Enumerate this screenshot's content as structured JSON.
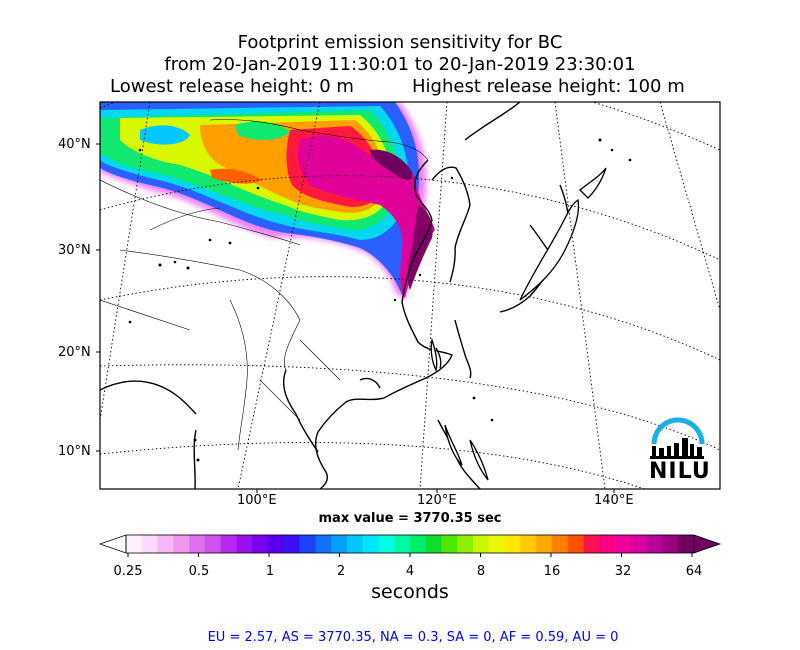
{
  "title": {
    "line1": "Footprint emission sensitivity for BC",
    "line2": "from 20-Jan-2019 11:30:01 to 20-Jan-2019 23:30:01",
    "lowest": "Lowest release height: 0 m",
    "highest": "Highest release height: 100 m"
  },
  "map": {
    "lat_labels": [
      "40°N",
      "30°N",
      "20°N",
      "10°N"
    ],
    "lon_labels": [
      "100°E",
      "120°E",
      "140°E"
    ],
    "max_value": "max value = 3770.35 sec",
    "logo_text": "NILU"
  },
  "colorbar": {
    "ticks": [
      "0.25",
      "0.5",
      "1",
      "2",
      "4",
      "8",
      "16",
      "32",
      "64"
    ],
    "unit": "seconds",
    "scale": "log",
    "colors": [
      "#fff0ff",
      "#ffd8ff",
      "#f8b8f8",
      "#f098f0",
      "#e070f0",
      "#d050f0",
      "#b828f0",
      "#9a10f0",
      "#7a00f0",
      "#5a00f0",
      "#3a10f8",
      "#2040ff",
      "#1070ff",
      "#00a0ff",
      "#00c8ff",
      "#00e8ff",
      "#00ffe0",
      "#00f8a8",
      "#00ee70",
      "#10dd30",
      "#50e800",
      "#90f000",
      "#c8f800",
      "#ecf800",
      "#ffe800",
      "#ffc800",
      "#ffa800",
      "#ff8000",
      "#ff5000",
      "#ff1050",
      "#ff0080",
      "#f000a0",
      "#d800a0",
      "#b8009a",
      "#980080",
      "#700060"
    ]
  },
  "regions": "EU = 2.57,  AS = 3770.35,  NA = 0.3,  SA = 0,  AF = 0.59,  AU = 0"
}
